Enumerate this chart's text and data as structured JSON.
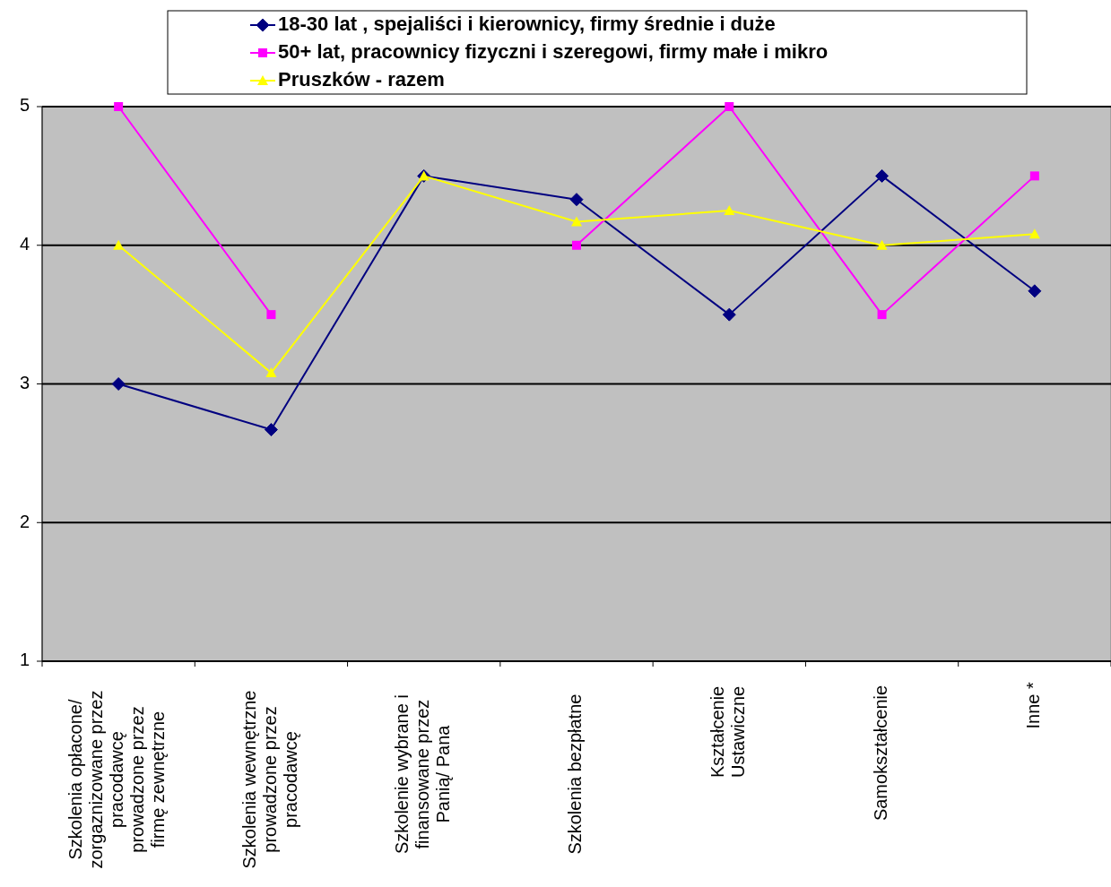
{
  "chart_data": {
    "type": "line",
    "categories": [
      "Szkolenia opłacone/ zorgaznizowane przez pracodawcę prowadzone przez firmę zewnętrzne",
      "Szkolenia wewnętrzne prowadzone przez pracodawcę",
      "Szkolenie wybrane i finansowane przez Panią/ Pana",
      "Szkolenia bezpłatne",
      "Kształcenie Ustawiczne",
      "Samokształcenie",
      "Inne *"
    ],
    "series": [
      {
        "name": "18-30 lat , spejaliści i kierownicy, firmy średnie i duże",
        "color": "#000080",
        "marker": "diamond",
        "values": [
          3,
          2.67,
          4.5,
          4.33,
          3.5,
          4.5,
          3.67
        ]
      },
      {
        "name": "50+ lat, pracownicy fizyczni i szeregowi, firmy małe i mikro",
        "color": "#ff00ff",
        "marker": "square",
        "values": [
          5,
          3.5,
          null,
          4,
          5,
          3.5,
          4.5
        ]
      },
      {
        "name": "Pruszków - razem",
        "color": "#ffff00",
        "marker": "triangle",
        "values": [
          4,
          3.08,
          4.5,
          4.17,
          4.25,
          4,
          4.08
        ]
      }
    ],
    "ylim": [
      1,
      5
    ],
    "yticks": [
      1,
      2,
      3,
      4,
      5
    ],
    "grid": "y",
    "legend": "top"
  }
}
